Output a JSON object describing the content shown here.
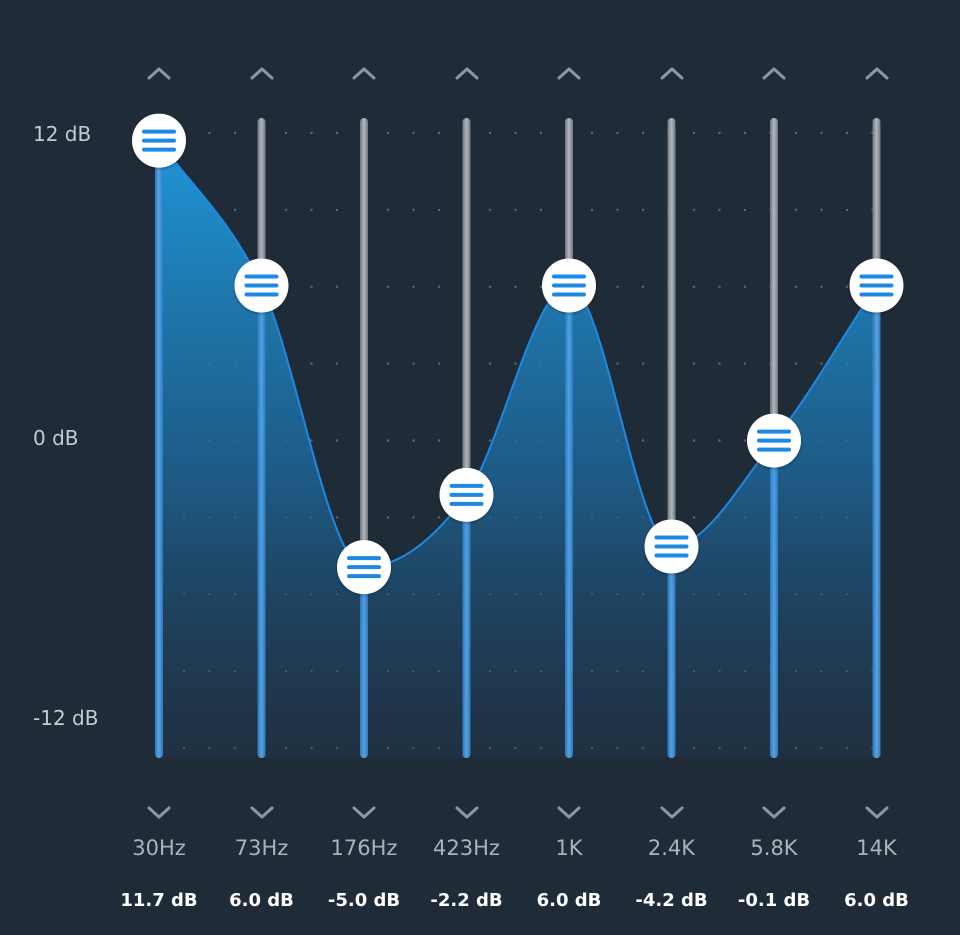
{
  "axis": {
    "top_label": "12 dB",
    "mid_label": "0 dB",
    "bottom_label": "-12 dB"
  },
  "colors": {
    "background": "#202b38",
    "accent": "#1e88e5",
    "track": "#8a9099",
    "knob": "#ffffff"
  },
  "icons": {
    "up": "chevron-up-icon",
    "down": "chevron-down-icon",
    "handle": "menu-lines-icon"
  },
  "bands": [
    {
      "freq": "30Hz",
      "gain_label": "11.7 dB",
      "gain": 11.7
    },
    {
      "freq": "73Hz",
      "gain_label": "6.0 dB",
      "gain": 6.0
    },
    {
      "freq": "176Hz",
      "gain_label": "-5.0 dB",
      "gain": -5.0
    },
    {
      "freq": "423Hz",
      "gain_label": "-2.2 dB",
      "gain": -2.2
    },
    {
      "freq": "1K",
      "gain_label": "6.0 dB",
      "gain": 6.0
    },
    {
      "freq": "2.4K",
      "gain_label": "-4.2 dB",
      "gain": -4.2
    },
    {
      "freq": "5.8K",
      "gain_label": "-0.1 dB",
      "gain": -0.1
    },
    {
      "freq": "14K",
      "gain_label": "6.0 dB",
      "gain": 6.0
    }
  ]
}
